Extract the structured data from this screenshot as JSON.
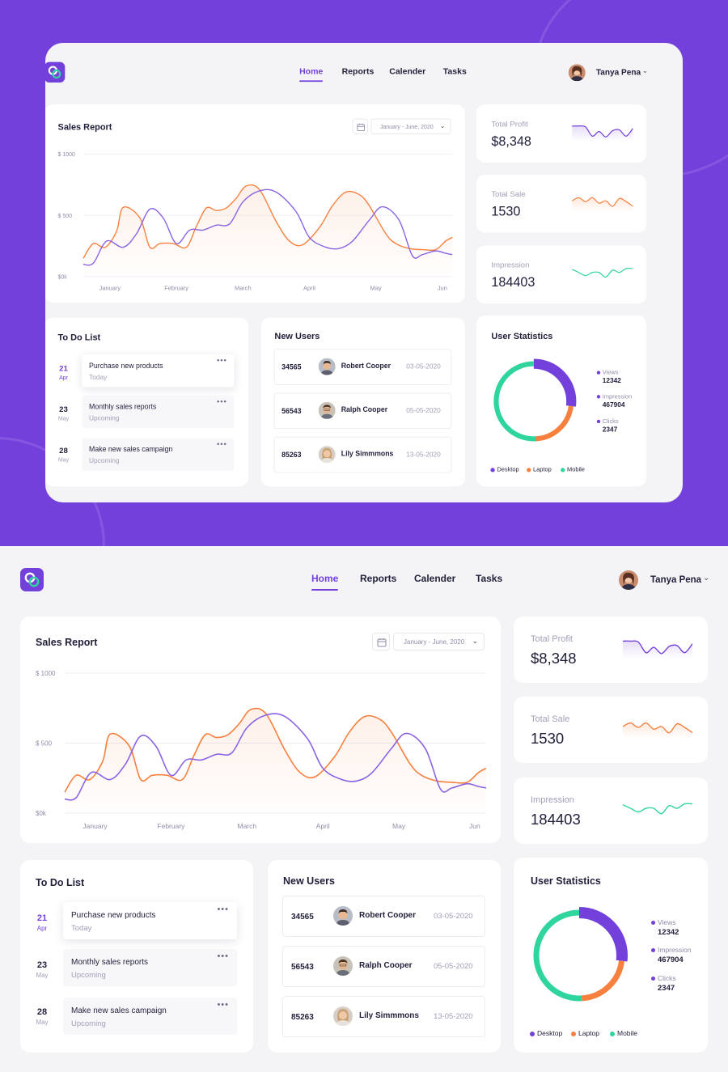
{
  "colors": {
    "brand": "#7440dc",
    "orange": "#f7803f",
    "purple": "#8a63e4",
    "green": "#2fd59d"
  },
  "nav": {
    "items": [
      "Home",
      "Reports",
      "Calender",
      "Tasks"
    ],
    "active": "Home"
  },
  "user": {
    "name": "Tanya Pena"
  },
  "sales": {
    "title": "Sales Report",
    "date_range": "January - June, 2020",
    "chart_data": {
      "type": "line",
      "categories": [
        "January",
        "February",
        "March",
        "April",
        "May",
        "Jun"
      ],
      "y_ticks": [
        "$ 1000",
        "$ 500",
        "$0k"
      ],
      "ylim": [
        0,
        1000
      ],
      "grid": true,
      "series": [
        {
          "color": "#f7803f",
          "area": true,
          "x": [
            0,
            0.15,
            0.33,
            0.5,
            0.6,
            0.85,
            1.0,
            1.15,
            1.35,
            1.55,
            1.7,
            1.85,
            2.0,
            2.15,
            2.3,
            2.45,
            2.65,
            2.9,
            3.1,
            3.3,
            3.55,
            3.75,
            3.95,
            4.15,
            4.3,
            4.55,
            4.7,
            4.9,
            5.1,
            5.3,
            5.45,
            5.55
          ],
          "y": [
            150,
            270,
            240,
            370,
            565,
            480,
            240,
            270,
            270,
            240,
            410,
            560,
            540,
            560,
            640,
            740,
            710,
            450,
            290,
            260,
            400,
            580,
            690,
            670,
            580,
            350,
            270,
            230,
            220,
            220,
            290,
            320
          ]
        },
        {
          "color": "#8a63e4",
          "area": false,
          "x": [
            0,
            0.15,
            0.35,
            0.6,
            0.8,
            1.0,
            1.2,
            1.4,
            1.6,
            1.8,
            2.0,
            2.2,
            2.4,
            2.65,
            2.9,
            3.2,
            3.4,
            3.65,
            3.85,
            4.05,
            4.3,
            4.5,
            4.75,
            4.95,
            5.1,
            5.3,
            5.45,
            5.55
          ],
          "y": [
            100,
            110,
            290,
            240,
            350,
            550,
            480,
            270,
            380,
            380,
            420,
            430,
            610,
            700,
            690,
            530,
            320,
            240,
            230,
            290,
            460,
            570,
            460,
            170,
            180,
            210,
            190,
            180
          ]
        }
      ]
    }
  },
  "stats": [
    {
      "label": "Total Profit",
      "value": "$8,348",
      "color": "#7440dc",
      "area": true,
      "spark": [
        0.2,
        0.2,
        0.25,
        0.85,
        0.55,
        0.9,
        0.5,
        0.45,
        0.85,
        0.35
      ]
    },
    {
      "label": "Total Sale",
      "value": "1530",
      "color": "#f7803f",
      "area": true,
      "spark": [
        0.5,
        0.3,
        0.55,
        0.3,
        0.65,
        0.5,
        0.85,
        0.35,
        0.55,
        0.85
      ]
    },
    {
      "label": "Impression",
      "value": "184403",
      "color": "#2fd59d",
      "area": false,
      "spark": [
        0.35,
        0.55,
        0.75,
        0.55,
        0.55,
        0.85,
        0.4,
        0.55,
        0.3,
        0.3
      ]
    }
  ],
  "todo": {
    "title": "To Do List",
    "items": [
      {
        "day": "21",
        "month": "Apr",
        "title": "Purchase new products",
        "status": "Today",
        "active": true,
        "more": "•••"
      },
      {
        "day": "23",
        "month": "May",
        "title": "Monthly sales reports",
        "status": "Upcoming",
        "active": false,
        "more": "•••"
      },
      {
        "day": "28",
        "month": "May",
        "title": "Make new sales campaign",
        "status": "Upcoming",
        "active": false,
        "more": "•••"
      }
    ]
  },
  "users": {
    "title": "New Users",
    "rows": [
      {
        "id": "34565",
        "name": "Robert Cooper",
        "date": "03-05-2020"
      },
      {
        "id": "56543",
        "name": "Ralph Cooper",
        "date": "05-05-2020"
      },
      {
        "id": "85263",
        "name": "Lily Simmmons",
        "date": "13-05-2020"
      }
    ]
  },
  "user_stats": {
    "title": "User Statistics",
    "legend": [
      {
        "label": "Views",
        "value": "12342"
      },
      {
        "label": "Impression",
        "value": "467904"
      },
      {
        "label": "Clicks",
        "value": "2347"
      }
    ],
    "series": [
      {
        "label": "Desktop",
        "color": "#7440dc",
        "share": 0.27
      },
      {
        "label": "Laptop",
        "color": "#f7803f",
        "share": 0.22
      },
      {
        "label": "Mobile",
        "color": "#2fd59d",
        "share": 0.51
      }
    ]
  }
}
